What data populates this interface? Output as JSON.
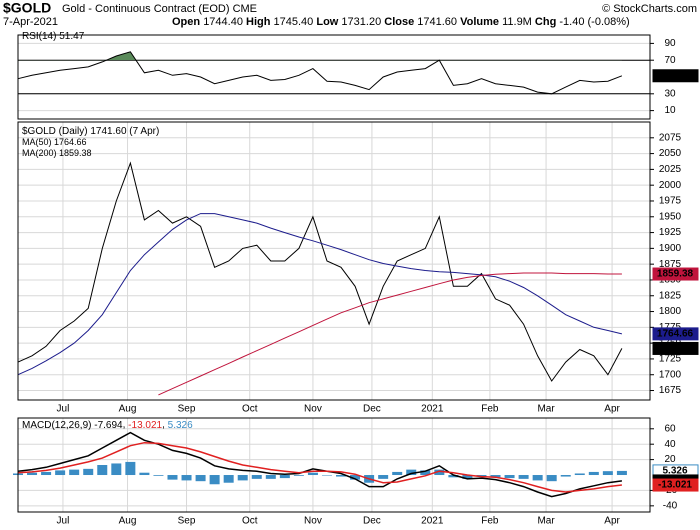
{
  "header": {
    "symbol": "$GOLD",
    "name": "Gold - Continuous Contract (EOD) CME",
    "copyright": "© StockCharts.com",
    "date": "7-Apr-2021",
    "quote": [
      {
        "label": "Open",
        "value": "1744.40"
      },
      {
        "label": "High",
        "value": "1745.40"
      },
      {
        "label": "Low",
        "value": "1731.20"
      },
      {
        "label": "Close",
        "value": "1741.60"
      },
      {
        "label": "Volume",
        "value": "11.9M"
      },
      {
        "label": "Chg",
        "value": "-1.40 (-0.08%)"
      }
    ]
  },
  "chart_data": [
    {
      "type": "line",
      "title": "RSI(14)",
      "ylim": [
        0,
        100
      ],
      "yticks": [
        90,
        70,
        30,
        10
      ],
      "xlim": [
        0,
        45
      ],
      "series": [
        {
          "name": "RSI(14)",
          "color": "#000000",
          "last_label": "51.47",
          "values": [
            48,
            52,
            55,
            58,
            60,
            62,
            68,
            75,
            80,
            55,
            58,
            52,
            54,
            50,
            42,
            46,
            50,
            52,
            46,
            47,
            52,
            60,
            45,
            44,
            40,
            35,
            50,
            56,
            58,
            60,
            70,
            40,
            42,
            48,
            42,
            40,
            38,
            32,
            30,
            38,
            46,
            44,
            45,
            51.47
          ]
        }
      ],
      "bands": [
        70,
        30
      ],
      "fill_color": "#5a8a5a"
    },
    {
      "type": "line",
      "title": "$GOLD (Daily)",
      "title_suffix": "(7 Apr)",
      "ylim": [
        1660,
        2100
      ],
      "yticks": [
        2075,
        2050,
        2025,
        2000,
        1975,
        1950,
        1925,
        1900,
        1875,
        1850,
        1825,
        1800,
        1775,
        1750,
        1725,
        1700,
        1675
      ],
      "xlim": [
        0,
        45
      ],
      "xticks": [
        {
          "value": 3.2,
          "label": "Jul"
        },
        {
          "value": 7.8,
          "label": "Aug"
        },
        {
          "value": 12.0,
          "label": "Sep"
        },
        {
          "value": 16.5,
          "label": "Oct"
        },
        {
          "value": 21.0,
          "label": "Nov"
        },
        {
          "value": 25.2,
          "label": "Dec"
        },
        {
          "value": 29.5,
          "label": "2021"
        },
        {
          "value": 33.6,
          "label": "Feb"
        },
        {
          "value": 37.6,
          "label": "Mar"
        },
        {
          "value": 42.3,
          "label": "Apr"
        }
      ],
      "series": [
        {
          "name": "$GOLD (Daily)",
          "color": "#000000",
          "last_label": "1741.60",
          "values": [
            1720,
            1730,
            1745,
            1770,
            1785,
            1805,
            1900,
            1975,
            2035,
            1945,
            1960,
            1940,
            1950,
            1935,
            1870,
            1880,
            1900,
            1905,
            1880,
            1880,
            1900,
            1950,
            1880,
            1870,
            1840,
            1780,
            1840,
            1880,
            1890,
            1900,
            1950,
            1840,
            1840,
            1860,
            1820,
            1810,
            1780,
            1730,
            1690,
            1720,
            1740,
            1730,
            1700,
            1741.6
          ]
        },
        {
          "name": "MA(50)",
          "color": "#1c1c8c",
          "last_label": "1764.66",
          "values": [
            1700,
            1710,
            1722,
            1735,
            1750,
            1770,
            1795,
            1830,
            1865,
            1890,
            1910,
            1930,
            1945,
            1955,
            1955,
            1950,
            1945,
            1940,
            1932,
            1925,
            1918,
            1912,
            1905,
            1898,
            1890,
            1882,
            1876,
            1872,
            1868,
            1865,
            1863,
            1862,
            1860,
            1858,
            1855,
            1848,
            1838,
            1825,
            1810,
            1795,
            1785,
            1775,
            1770,
            1764.66
          ]
        },
        {
          "name": "MA(200)",
          "color": "#c0143c",
          "last_label": "1859.38",
          "values": [
            null,
            null,
            null,
            null,
            null,
            null,
            null,
            null,
            null,
            null,
            1668,
            1678,
            1688,
            1698,
            1708,
            1718,
            1728,
            1738,
            1748,
            1758,
            1768,
            1778,
            1788,
            1798,
            1806,
            1814,
            1820,
            1826,
            1832,
            1838,
            1844,
            1850,
            1854,
            1857,
            1859,
            1860,
            1861,
            1861,
            1861,
            1860,
            1860,
            1860,
            1859.5,
            1859.38
          ]
        }
      ]
    },
    {
      "type": "macd",
      "title": "MACD(12,26,9)",
      "ylim": [
        -48,
        74
      ],
      "yticks": [
        60,
        40,
        20,
        -20,
        -40
      ],
      "xlim": [
        0,
        45
      ],
      "xticks": [
        {
          "value": 3.2,
          "label": "Jul"
        },
        {
          "value": 7.8,
          "label": "Aug"
        },
        {
          "value": 12.0,
          "label": "Sep"
        },
        {
          "value": 16.5,
          "label": "Oct"
        },
        {
          "value": 21.0,
          "label": "Nov"
        },
        {
          "value": 25.2,
          "label": "Dec"
        },
        {
          "value": 29.5,
          "label": "2021"
        },
        {
          "value": 33.6,
          "label": "Feb"
        },
        {
          "value": 37.6,
          "label": "Mar"
        },
        {
          "value": 42.3,
          "label": "Apr"
        }
      ],
      "series": [
        {
          "name": "MACD",
          "color": "#000000",
          "last_label": "-7.694",
          "values": [
            5,
            7,
            10,
            15,
            20,
            25,
            35,
            45,
            55,
            45,
            40,
            32,
            28,
            22,
            12,
            8,
            6,
            5,
            2,
            1,
            2,
            8,
            5,
            2,
            -5,
            -15,
            -15,
            -5,
            2,
            5,
            12,
            0,
            -5,
            -4,
            -6,
            -10,
            -15,
            -22,
            -28,
            -24,
            -18,
            -14,
            -10,
            -7.694
          ]
        },
        {
          "name": "Signal",
          "color": "#e02020",
          "last_label": "-13.021",
          "values": [
            3,
            4,
            6,
            9,
            13,
            17,
            22,
            30,
            38,
            42,
            41,
            38,
            35,
            30,
            24,
            18,
            13,
            10,
            7,
            5,
            3,
            5,
            5,
            4,
            1,
            -5,
            -10,
            -9,
            -5,
            -1,
            5,
            3,
            0,
            -2,
            -3,
            -6,
            -10,
            -15,
            -20,
            -22,
            -20,
            -18,
            -15,
            -13.021
          ]
        }
      ],
      "histogram": {
        "name": "Histogram",
        "color": "#3a8cc4",
        "last_label": "5.326",
        "values": [
          2,
          3,
          4,
          6,
          7,
          8,
          13,
          15,
          17,
          3,
          -1,
          -6,
          -7,
          -8,
          -12,
          -10,
          -7,
          -5,
          -5,
          -4,
          -1,
          3,
          0,
          -2,
          -6,
          -10,
          -5,
          4,
          7,
          6,
          7,
          -3,
          -5,
          -2,
          -3,
          -4,
          -5,
          -7,
          -8,
          -2,
          2,
          4,
          5,
          5.326
        ]
      }
    }
  ]
}
